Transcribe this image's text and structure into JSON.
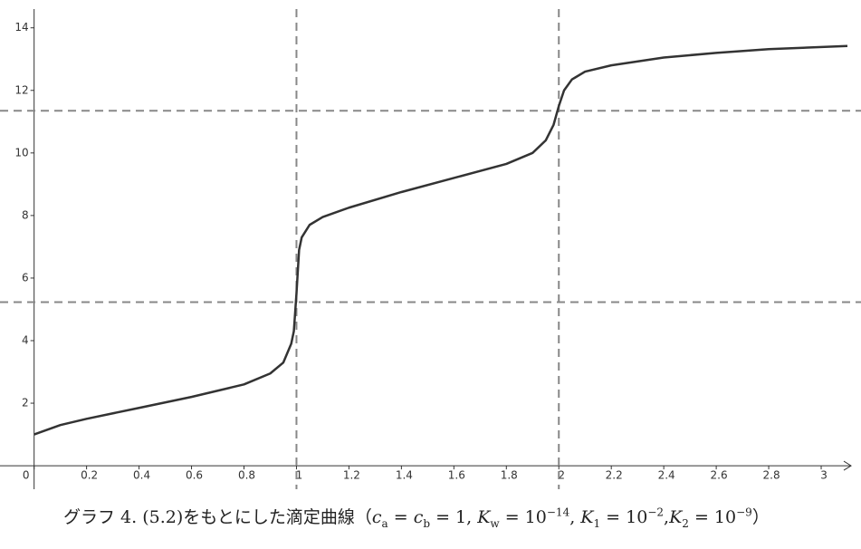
{
  "chart_data": {
    "type": "line",
    "x": [
      0,
      0.1,
      0.2,
      0.4,
      0.6,
      0.8,
      0.9,
      0.95,
      0.98,
      0.99,
      1.0,
      1.01,
      1.02,
      1.05,
      1.1,
      1.2,
      1.4,
      1.6,
      1.8,
      1.9,
      1.95,
      1.98,
      2.0,
      2.02,
      2.05,
      2.1,
      2.2,
      2.4,
      2.6,
      2.8,
      3.1
    ],
    "series": [
      {
        "color": "#333333",
        "values": [
          1.0,
          1.3,
          1.5,
          1.85,
          2.2,
          2.6,
          2.95,
          3.3,
          3.9,
          4.3,
          5.5,
          6.9,
          7.3,
          7.7,
          7.95,
          8.25,
          8.75,
          9.2,
          9.65,
          10.0,
          10.4,
          10.9,
          11.5,
          12.0,
          12.35,
          12.6,
          12.8,
          13.05,
          13.2,
          13.32,
          13.42
        ]
      }
    ],
    "xlim": [
      -0.13,
      3.1
    ],
    "ylim": [
      -0.75,
      14.6
    ],
    "xticks": [
      0,
      0.2,
      0.4,
      0.6,
      0.8,
      1,
      1.2,
      1.4,
      1.6,
      1.8,
      2,
      2.2,
      2.4,
      2.6,
      2.8,
      3
    ],
    "yticks": [
      2,
      4,
      6,
      8,
      10,
      12,
      14
    ],
    "reference_lines": {
      "x": [
        1,
        2
      ],
      "y": [
        11.35,
        5.23
      ],
      "color": "#888888"
    },
    "grid": false,
    "caption": [
      "グラフ 4. (5.2)をもとにした滴定曲線（",
      "c",
      "a",
      " = ",
      "c",
      "b",
      " = 1, ",
      "K",
      "w",
      " = 10",
      "−14",
      ", ",
      "K",
      "1",
      " = 10",
      "−2",
      ",",
      "K",
      "2",
      " = 10",
      "−9",
      "）"
    ]
  }
}
